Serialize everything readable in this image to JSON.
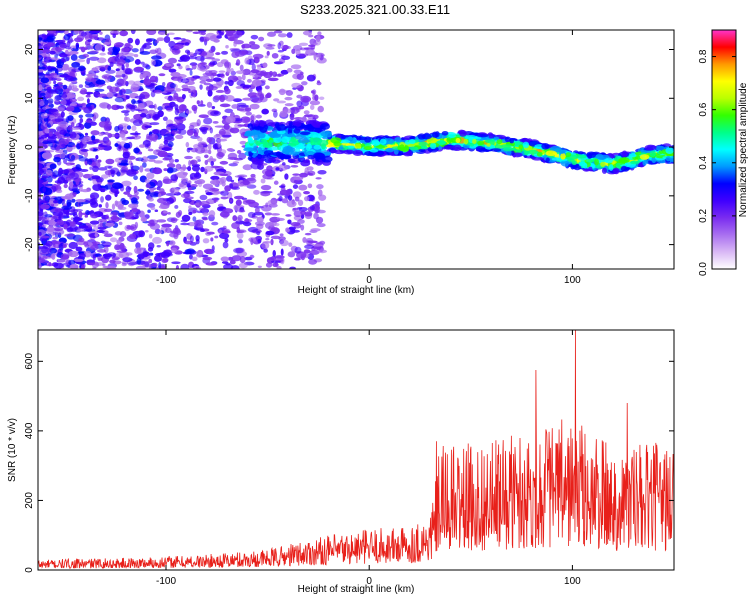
{
  "title": "S233.2025.321.00.33.E11",
  "chart_data": [
    {
      "type": "heatmap",
      "xlabel": "Height of straight line (km)",
      "ylabel": "Frequency (Hz)",
      "xlim": [
        -163,
        150
      ],
      "ylim": [
        -25,
        24
      ],
      "xticks": [
        -100,
        0,
        100
      ],
      "xtick_labels": [
        "-100",
        "0",
        "100"
      ],
      "yticks": [
        -20,
        -10,
        0,
        10,
        20
      ],
      "ytick_labels": [
        "-20",
        "-10",
        "0",
        "10",
        "20"
      ],
      "colorbar": {
        "label": "Normalized spectral amplitude",
        "range": [
          0.0,
          0.9
        ],
        "ticks": [
          0.0,
          0.2,
          0.4,
          0.6,
          0.8
        ],
        "tick_labels": [
          "0.0",
          "0.2",
          "0.4",
          "0.6",
          "0.8"
        ],
        "colormap": [
          "#ffffff",
          "#d9b8f5",
          "#a970f0",
          "#7a2cf0",
          "#3f00ff",
          "#0000ff",
          "#0099ff",
          "#00ffff",
          "#00ff88",
          "#33ff00",
          "#bbff00",
          "#ffff00",
          "#ff9900",
          "#ff0000",
          "#ff33cc"
        ]
      },
      "ridge": {
        "x": [
          -30,
          -10,
          0,
          20,
          40,
          60,
          80,
          100,
          120,
          140,
          150
        ],
        "y": [
          1,
          0.5,
          0.2,
          0.3,
          1.5,
          0.8,
          -0.5,
          -2.5,
          -3.5,
          -1.5,
          -1.5
        ]
      }
    },
    {
      "type": "line",
      "xlabel": "Height of straight line (km)",
      "ylabel": "SNR (10 * v/v)",
      "xlim": [
        -163,
        150
      ],
      "ylim": [
        0,
        690
      ],
      "xticks": [
        -100,
        0,
        100
      ],
      "xtick_labels": [
        "-100",
        "0",
        "100"
      ],
      "yticks": [
        0,
        200,
        400,
        600
      ],
      "ytick_labels": [
        "0",
        "200",
        "400",
        "600"
      ],
      "color": "#e8201a",
      "envelope": {
        "x": [
          -163,
          -120,
          -80,
          -50,
          -30,
          -10,
          0,
          20,
          30,
          35,
          60,
          80,
          100,
          120,
          150
        ],
        "y": [
          30,
          35,
          45,
          60,
          90,
          110,
          120,
          130,
          160,
          360,
          370,
          420,
          440,
          360,
          370
        ]
      },
      "peaks": [
        {
          "x": 101.5,
          "y": 690
        },
        {
          "x": 82,
          "y": 575
        },
        {
          "x": 127,
          "y": 480
        },
        {
          "x": 33,
          "y": 370
        }
      ]
    }
  ]
}
